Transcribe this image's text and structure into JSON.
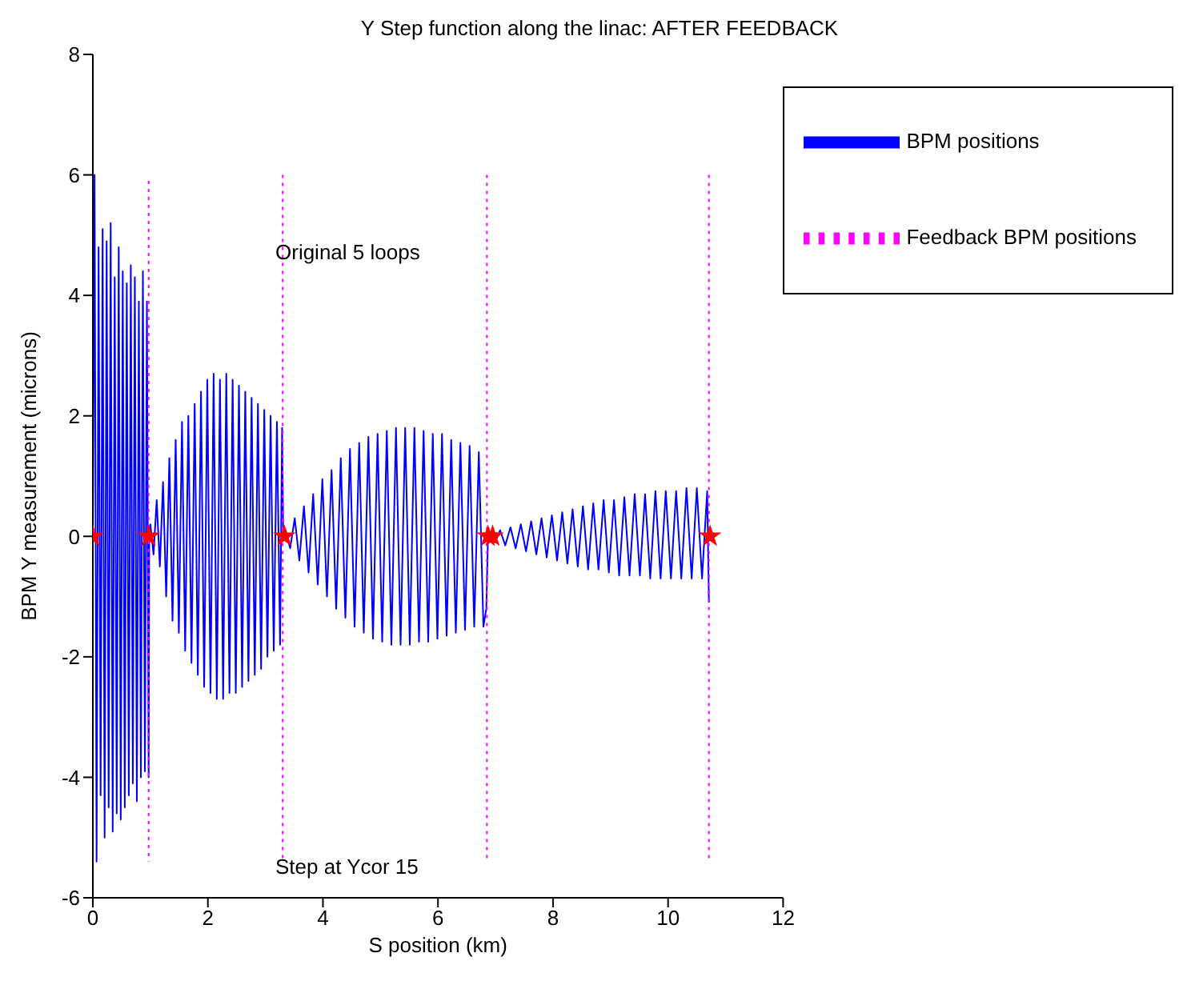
{
  "chart_data": {
    "type": "line",
    "title": "Y Step function along the linac:  AFTER FEEDBACK",
    "xlabel": "S position (km)",
    "ylabel": "BPM Y measurement (microns)",
    "xlim": [
      0,
      12
    ],
    "xticks": [
      0,
      2,
      4,
      6,
      8,
      10,
      12
    ],
    "ylim": [
      -6,
      8
    ],
    "yticks": [
      -6,
      -4,
      -2,
      0,
      2,
      4,
      6,
      8
    ],
    "grid": false,
    "legend": "top right",
    "annotations": [
      "Original 5 loops",
      "Step at Ycor 15"
    ],
    "series": [
      {
        "name": "BPM positions",
        "color": "#0000ff",
        "line_style": "solid",
        "marker": "none",
        "x": [
          0,
          0.03,
          0.065,
          0.1,
          0.135,
          0.17,
          0.205,
          0.24,
          0.275,
          0.31,
          0.345,
          0.38,
          0.415,
          0.45,
          0.485,
          0.52,
          0.555,
          0.59,
          0.625,
          0.66,
          0.695,
          0.73,
          0.765,
          0.8,
          0.835,
          0.87,
          0.905,
          0.94,
          0.97,
          0.98,
          1.0,
          1.055,
          1.11,
          1.165,
          1.22,
          1.275,
          1.33,
          1.385,
          1.44,
          1.495,
          1.55,
          1.605,
          1.66,
          1.715,
          1.77,
          1.825,
          1.88,
          1.935,
          1.99,
          2.045,
          2.1,
          2.155,
          2.21,
          2.265,
          2.32,
          2.375,
          2.43,
          2.485,
          2.54,
          2.595,
          2.65,
          2.705,
          2.76,
          2.815,
          2.87,
          2.925,
          2.98,
          3.035,
          3.09,
          3.145,
          3.2,
          3.255,
          3.29,
          3.31,
          3.35,
          3.43,
          3.51,
          3.59,
          3.67,
          3.75,
          3.83,
          3.91,
          3.99,
          4.07,
          4.15,
          4.23,
          4.31,
          4.39,
          4.47,
          4.55,
          4.63,
          4.71,
          4.79,
          4.87,
          4.95,
          5.03,
          5.11,
          5.19,
          5.27,
          5.35,
          5.43,
          5.51,
          5.59,
          5.67,
          5.75,
          5.83,
          5.91,
          5.99,
          6.07,
          6.15,
          6.23,
          6.31,
          6.39,
          6.47,
          6.55,
          6.63,
          6.71,
          6.79,
          6.84,
          6.87,
          6.9,
          6.99,
          7.08,
          7.17,
          7.26,
          7.35,
          7.44,
          7.53,
          7.62,
          7.71,
          7.8,
          7.89,
          7.98,
          8.07,
          8.16,
          8.25,
          8.34,
          8.43,
          8.52,
          8.61,
          8.7,
          8.79,
          8.88,
          8.97,
          9.06,
          9.15,
          9.24,
          9.33,
          9.42,
          9.51,
          9.6,
          9.69,
          9.78,
          9.87,
          9.96,
          10.05,
          10.14,
          10.23,
          10.32,
          10.41,
          10.5,
          10.59,
          10.68,
          10.71
        ],
        "values": [
          0,
          6,
          -5.4,
          4.8,
          -4.3,
          5.1,
          -5,
          4.9,
          -4.5,
          5.2,
          -4.9,
          4.3,
          -4.6,
          4.8,
          -4.7,
          4.4,
          -4.5,
          4.2,
          -4.3,
          4.5,
          -4.1,
          4.3,
          -4.4,
          3.9,
          -4,
          4.4,
          -3.9,
          3.9,
          -4,
          0,
          0.2,
          -0.3,
          0.6,
          -0.5,
          0.9,
          -1,
          1.3,
          -1.4,
          1.6,
          -1.6,
          1.9,
          -1.9,
          2,
          -2.1,
          2.2,
          -2.3,
          2.4,
          -2.5,
          2.6,
          -2.6,
          2.7,
          -2.7,
          2.6,
          -2.7,
          2.7,
          -2.6,
          2.6,
          -2.6,
          2.5,
          -2.5,
          2.4,
          -2.4,
          2.3,
          -2.3,
          2.2,
          -2.2,
          2.1,
          -2,
          2,
          -1.9,
          1.9,
          -1.8,
          1.8,
          0,
          0.1,
          -0.2,
          0.3,
          -0.4,
          0.5,
          -0.6,
          0.7,
          -0.8,
          0.95,
          -1,
          1.1,
          -1.2,
          1.3,
          -1.35,
          1.45,
          -1.5,
          1.55,
          -1.6,
          1.65,
          -1.7,
          1.7,
          -1.75,
          1.75,
          -1.8,
          1.8,
          -1.8,
          1.8,
          -1.8,
          1.8,
          -1.75,
          1.75,
          -1.75,
          1.7,
          -1.7,
          1.7,
          -1.65,
          1.6,
          -1.6,
          1.55,
          -1.55,
          1.5,
          -1.5,
          1.4,
          -1.5,
          -1.2,
          0,
          0,
          -0.1,
          0.1,
          -0.15,
          0.15,
          -0.2,
          0.2,
          -0.25,
          0.25,
          -0.3,
          0.3,
          -0.35,
          0.35,
          -0.4,
          0.4,
          -0.45,
          0.45,
          -0.5,
          0.5,
          -0.55,
          0.55,
          -0.55,
          0.6,
          -0.6,
          0.6,
          -0.65,
          0.65,
          -0.65,
          0.7,
          -0.65,
          0.7,
          -0.7,
          0.75,
          -0.7,
          0.75,
          -0.7,
          0.75,
          -0.7,
          0.8,
          -0.7,
          0.8,
          -0.7,
          0.75,
          -1.1
        ]
      },
      {
        "name": "Feedback BPM positions",
        "color": "#ff00ff",
        "line_style": "dotted",
        "marker": "none",
        "x": [
          0.97,
          0.97
        ],
        "values": [
          5.9,
          -5.4
        ]
      },
      {
        "color": "#ff00ff",
        "line_style": "dotted",
        "marker": "none",
        "x": [
          3.3,
          3.3
        ],
        "values": [
          6,
          -5.4
        ]
      },
      {
        "color": "#ff00ff",
        "line_style": "dotted",
        "marker": "none",
        "x": [
          6.85,
          6.85
        ],
        "values": [
          6,
          -5.4
        ]
      },
      {
        "color": "#ff00ff",
        "line_style": "dotted",
        "marker": "none",
        "x": [
          10.71,
          10.71
        ],
        "values": [
          6,
          -5.4
        ]
      },
      {
        "type": "scatter",
        "color": "#ff0000",
        "marker": "star",
        "x": [
          0,
          0.97,
          3.33,
          6.87,
          6.95,
          10.73
        ],
        "values": [
          0,
          0,
          0,
          0,
          0,
          0
        ]
      }
    ]
  }
}
